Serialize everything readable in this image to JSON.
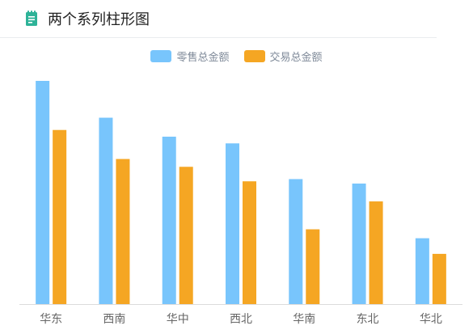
{
  "header": {
    "title": "两个系列柱形图",
    "icon": "notepad-icon",
    "accent_color": "#2eb398"
  },
  "chart_data": {
    "type": "bar",
    "categories": [
      "华东",
      "西南",
      "华中",
      "西北",
      "华南",
      "东北",
      "华北"
    ],
    "series": [
      {
        "name": "零售总金额",
        "color": "#78c5fc",
        "values": [
          100,
          83.5,
          75,
          72,
          56,
          54,
          29.5
        ]
      },
      {
        "name": "交易总金额",
        "color": "#f5a623",
        "values": [
          78,
          65,
          61.5,
          55,
          33.5,
          46,
          22.5
        ]
      }
    ],
    "ylim": [
      0,
      100
    ],
    "grid": false,
    "legend_position": "top-center"
  }
}
